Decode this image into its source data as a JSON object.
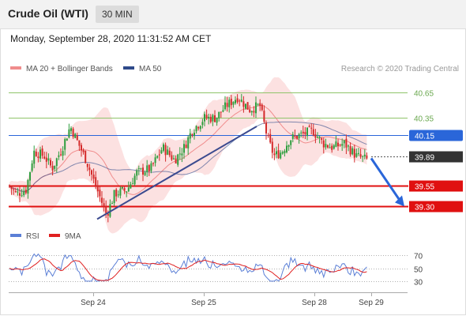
{
  "header": {
    "title": "Crude Oil (WTI)",
    "timeframe": "30 MIN"
  },
  "datetime": "Monday, September 28, 2020 11:31:52 AM CET",
  "legend": {
    "ma20": {
      "label": "MA 20 + Bollinger Bands",
      "color": "#f08c8c"
    },
    "ma50": {
      "label": "MA 50",
      "color": "#2f4a8a"
    }
  },
  "credit": "Research © 2020 Trading Central",
  "rsi_legend": {
    "rsi": {
      "label": "RSI",
      "color": "#5b7fd6"
    },
    "ma9": {
      "label": "9MA",
      "color": "#e02020"
    }
  },
  "chart_data": [
    {
      "type": "candlestick",
      "ylim": [
        39.05,
        40.85
      ],
      "levels": [
        {
          "value": 40.65,
          "label": "40.65",
          "kind": "resistance",
          "color": "#8fc46a"
        },
        {
          "value": 40.35,
          "label": "40.35",
          "kind": "resistance",
          "color": "#8fc46a"
        },
        {
          "value": 40.15,
          "label": "40.15",
          "kind": "pivot",
          "color": "#2a66d9"
        },
        {
          "value": 39.89,
          "label": "39.89",
          "kind": "last",
          "color": "#333333"
        },
        {
          "value": 39.55,
          "label": "39.55",
          "kind": "support",
          "color": "#e01010"
        },
        {
          "value": 39.3,
          "label": "39.30",
          "kind": "support",
          "color": "#e01010"
        }
      ],
      "x_ticks": [
        "Sep 24",
        "Sep 25",
        "Sep 28",
        "Sep 29"
      ],
      "trendline": {
        "from": 39.15,
        "to": 40.25
      },
      "arrow": {
        "from": 39.89,
        "to": 39.3,
        "color": "#2a66d9"
      },
      "series_colors": {
        "up": "#2e9e3e",
        "down": "#d42a2a"
      }
    },
    {
      "type": "line",
      "ylim": [
        20,
        80
      ],
      "y_ticks": [
        30,
        50,
        70
      ]
    }
  ]
}
